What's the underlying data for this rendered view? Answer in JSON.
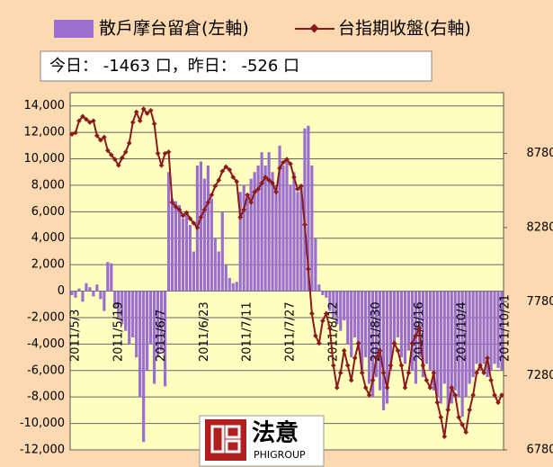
{
  "chart_data": {
    "type": "combo",
    "annotations": [
      "今日：  -1463 口，昨日：  -526 口",
      "法意",
      "PHIGROUP"
    ],
    "categories": [
      "2011/5/3",
      null,
      null,
      null,
      null,
      null,
      null,
      null,
      null,
      null,
      null,
      null,
      "2011/5/19",
      null,
      null,
      null,
      null,
      null,
      null,
      null,
      null,
      null,
      null,
      null,
      "2011/6/7",
      null,
      null,
      null,
      null,
      null,
      null,
      null,
      null,
      null,
      null,
      null,
      "2011/6/23",
      null,
      null,
      null,
      null,
      null,
      null,
      null,
      null,
      null,
      null,
      null,
      "2011/7/11",
      null,
      null,
      null,
      null,
      null,
      null,
      null,
      null,
      null,
      null,
      null,
      "2011/7/27",
      null,
      null,
      null,
      null,
      null,
      null,
      null,
      null,
      null,
      null,
      null,
      "2011/8/12",
      null,
      null,
      null,
      null,
      null,
      null,
      null,
      null,
      null,
      null,
      null,
      "2011/8/30",
      null,
      null,
      null,
      null,
      null,
      null,
      null,
      null,
      null,
      null,
      null,
      "2011/9/16",
      null,
      null,
      null,
      null,
      null,
      null,
      null,
      null,
      null,
      null,
      null,
      "2011/10/4",
      null,
      null,
      null,
      null,
      null,
      null,
      null,
      null,
      null,
      null,
      null,
      "2011/10/21"
    ],
    "series": [
      {
        "name": "散戶摩台留倉(左軸)",
        "type": "bar",
        "color": "#9a6fd0",
        "values": [
          -300,
          -500,
          200,
          -800,
          600,
          300,
          -400,
          500,
          -600,
          -1500,
          2200,
          2100,
          -1200,
          -2000,
          -2500,
          -3000,
          -4000,
          -3500,
          -5000,
          -8000,
          -11400,
          -6000,
          -4000,
          -7000,
          -5000,
          -4500,
          -7200,
          9000,
          7000,
          6800,
          6500,
          5500,
          6000,
          5000,
          3000,
          9500,
          9800,
          8500,
          9500,
          7000,
          4000,
          3000,
          6000,
          2000,
          1000,
          600,
          700,
          7500,
          8000,
          7000,
          8500,
          9000,
          9500,
          10500,
          9500,
          10500,
          9000,
          8000,
          11000,
          9500,
          10000,
          8000,
          9000,
          7500,
          8000,
          12300,
          12500,
          9500,
          4000,
          500,
          -300,
          -500,
          -1500,
          -2000,
          -2500,
          -3000,
          -2200,
          -4000,
          -5000,
          -3500,
          -4500,
          -6000,
          -5000,
          -7000,
          -8000,
          -6500,
          -7500,
          -9000,
          -8500,
          -6000,
          -4000,
          -3500,
          -5000,
          -5500,
          -4500,
          -6000,
          -7000,
          -5000,
          -6500,
          -5500,
          -6000,
          -7500,
          -8000,
          -8500,
          -7000,
          -9000,
          -8500,
          -7500,
          -8000,
          -9500,
          -8000,
          -7000,
          -6500,
          -5500,
          -6000,
          -5500,
          -6500,
          -6000,
          -5500,
          -5800,
          -6000
        ]
      },
      {
        "name": "台指期收盤(右軸)",
        "type": "line",
        "axis": "y2",
        "color": "#8b1a1a",
        "values": [
          8910,
          8920,
          9000,
          9030,
          9010,
          8990,
          9000,
          8900,
          8870,
          8890,
          8800,
          8770,
          8740,
          8700,
          8750,
          8790,
          8850,
          8990,
          9060,
          9000,
          9080,
          9050,
          9070,
          8980,
          8780,
          8700,
          8780,
          8790,
          8450,
          8420,
          8400,
          8360,
          8380,
          8340,
          8310,
          8280,
          8350,
          8400,
          8450,
          8500,
          8560,
          8600,
          8660,
          8690,
          8670,
          8620,
          8590,
          8350,
          8400,
          8500,
          8450,
          8520,
          8540,
          8580,
          8620,
          8600,
          8580,
          8520,
          8680,
          8720,
          8740,
          8710,
          8620,
          8540,
          8560,
          8300,
          8000,
          7700,
          7550,
          7500,
          7650,
          7700,
          7600,
          7350,
          7200,
          7300,
          7450,
          7350,
          7250,
          7400,
          7500,
          7300,
          7200,
          7150,
          7250,
          7400,
          7450,
          7300,
          7200,
          7350,
          7500,
          7450,
          7350,
          7200,
          7300,
          7500,
          7550,
          7600,
          7350,
          7250,
          7200,
          7300,
          7100,
          7000,
          6870,
          7050,
          7200,
          7150,
          7000,
          6950,
          6900,
          7050,
          7150,
          7300,
          7350,
          7300,
          7400,
          7250,
          7150,
          7100,
          7150
        ]
      }
    ],
    "ylim": [
      -12000,
      15000
    ],
    "yticks": [
      {
        "value": -12000,
        "label": "-12,000"
      },
      {
        "value": -10000,
        "label": "-10,000"
      },
      {
        "value": -8000,
        "label": "-8,000"
      },
      {
        "value": -6000,
        "label": "-6,000"
      },
      {
        "value": -4000,
        "label": "-4,000"
      },
      {
        "value": -2000,
        "label": "-2,000"
      },
      0,
      {
        "value": 2000,
        "label": "2,000"
      },
      {
        "value": 4000,
        "label": "4,000"
      },
      {
        "value": 6000,
        "label": "6,000"
      },
      {
        "value": 8000,
        "label": "8,000"
      },
      {
        "value": 10000,
        "label": "10,000"
      },
      {
        "value": 12000,
        "label": "12,000"
      },
      {
        "value": 14000,
        "label": "14,000"
      }
    ],
    "y2lim": [
      6780,
      9190
    ],
    "y2ticks": [
      6780,
      7280,
      7780,
      8280,
      8780
    ],
    "grid": true
  }
}
